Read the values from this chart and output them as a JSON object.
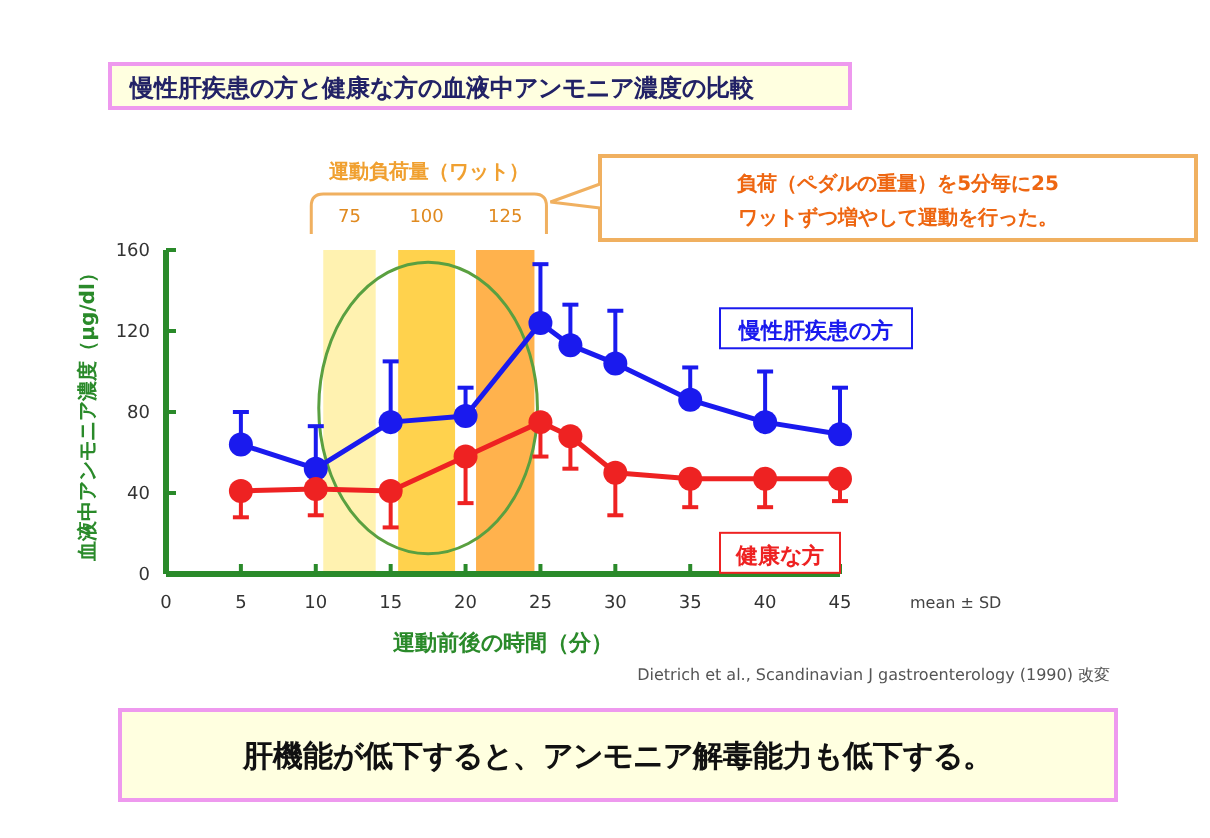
{
  "chart_data": {
    "type": "line",
    "title": "慢性肝疾患の方と健康な方の血液中アンモニア濃度の比較",
    "xlabel": "運動前後の時間（分）",
    "ylabel": "血液中アンモニア濃度（μg/dl）",
    "x": [
      5,
      10,
      15,
      20,
      25,
      27,
      30,
      35,
      40,
      45
    ],
    "series": [
      {
        "name": "慢性肝疾患の方",
        "color": "#1a1aee",
        "values": [
          64,
          52,
          75,
          78,
          124,
          113,
          104,
          86,
          75,
          69
        ],
        "errors": [
          [
            64,
            80
          ],
          [
            52,
            73
          ],
          [
            75,
            105
          ],
          [
            78,
            92
          ],
          [
            124,
            153
          ],
          [
            113,
            133
          ],
          [
            104,
            130
          ],
          [
            86,
            102
          ],
          [
            75,
            100
          ],
          [
            69,
            92
          ]
        ]
      },
      {
        "name": "健康な方",
        "color": "#ee2222",
        "values": [
          41,
          42,
          41,
          58,
          75,
          68,
          50,
          47,
          47,
          47
        ],
        "errors": [
          [
            28,
            41
          ],
          [
            29,
            42
          ],
          [
            23,
            41
          ],
          [
            35,
            58
          ],
          [
            58,
            75
          ],
          [
            52,
            68
          ],
          [
            29,
            50
          ],
          [
            33,
            47
          ],
          [
            33,
            47
          ],
          [
            36,
            47
          ]
        ]
      }
    ],
    "xlim": [
      0,
      45
    ],
    "xticks": [
      0,
      5,
      10,
      15,
      20,
      25,
      30,
      35,
      40,
      45
    ],
    "ylim": [
      0,
      160
    ],
    "yticks": [
      0,
      40,
      80,
      120,
      160
    ],
    "bands": [
      {
        "axis": "x",
        "from": 10.5,
        "to": 14,
        "label": "75",
        "color": "#fff2b0"
      },
      {
        "axis": "x",
        "from": 15.5,
        "to": 19.3,
        "label": "100",
        "color": "#ffd24d"
      },
      {
        "axis": "x",
        "from": 20.7,
        "to": 24.6,
        "label": "125",
        "color": "#ffb24d"
      }
    ],
    "annotations": [
      "運動負荷量（ワット）",
      "負荷（ペダルの重量）を5分毎に25ワットずつ増やして運動を行った。",
      "mean ± SD",
      "Dietrich et al., Scandinavian J gastroenterology (1990) 改変",
      "肝機能が低下すると、アンモニア解毒能力も低下する。"
    ],
    "marker": "circle",
    "grid": false,
    "legend": false
  }
}
